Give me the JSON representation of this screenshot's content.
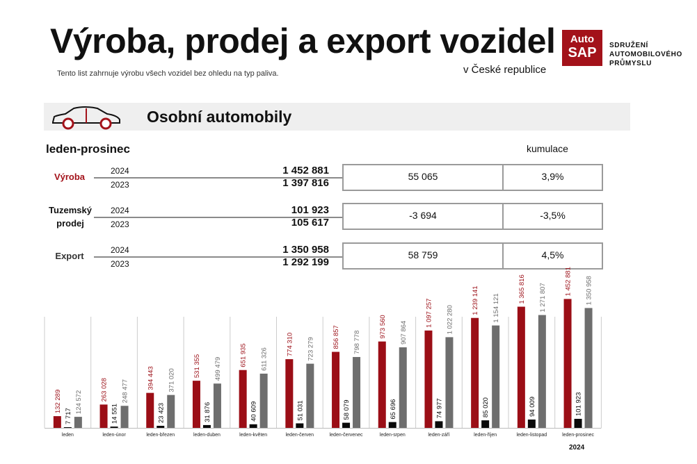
{
  "header": {
    "title": "Výroba, prodej a export vozidel",
    "note": "Tento list zahrnuje výrobu všech vozidel bez ohledu na typ paliva.",
    "region": "v České republice"
  },
  "logo": {
    "line1": "Auto",
    "line2": "SAP",
    "text1": "SDRUŽENÍ",
    "text2": "AUTOMOBILOVÉHO",
    "text3": "PRŮMYSLU"
  },
  "section": {
    "title": "Osobní automobily",
    "icon": "car-icon"
  },
  "period": "leden-prosinec",
  "cumulation_label": "kumulace",
  "metrics": [
    {
      "label": "Výroba",
      "label_color": "#a3121a",
      "year_a": "2024",
      "value_a": "1 452 881",
      "year_b": "2023",
      "value_b": "1 397 816",
      "diff": "55 065",
      "pct": "3,9%"
    },
    {
      "label": "Tuzemský prodej",
      "label_color": "#111111",
      "year_a": "2024",
      "value_a": "101 923",
      "year_b": "2023",
      "value_b": "105 617",
      "diff": "-3 694",
      "pct": "-3,5%"
    },
    {
      "label": "Export",
      "label_color": "#333333",
      "year_a": "2024",
      "value_a": "1 350 958",
      "year_b": "2023",
      "value_b": "1 292 199",
      "diff": "58 759",
      "pct": "4,5%"
    }
  ],
  "colors": {
    "production": "#9b0e16",
    "sales": "#0a0a0a",
    "export": "#6e6e6e"
  },
  "chart_data": {
    "type": "bar",
    "categories": [
      "leden",
      "leden-únor",
      "leden-březen",
      "leden-duben",
      "leden-květen",
      "leden-červen",
      "leden-červenec",
      "leden-srpen",
      "leden-září",
      "leden-říjen",
      "leden-listopad",
      "leden-prosinec"
    ],
    "series": [
      {
        "values": [
          132289,
          263028,
          394443,
          531355,
          651935,
          774310,
          856857,
          973560,
          1097257,
          1239141,
          1365816,
          1452881
        ],
        "labels": [
          "132 289",
          "263 028",
          "394 443",
          "531 355",
          "651 935",
          "774 310",
          "856 857",
          "973 560",
          "1 097 257",
          "1 239 141",
          "1 365 816",
          "1 452 881"
        ],
        "color": "#9b0e16",
        "label_color": "#9b0e16"
      },
      {
        "values": [
          7717,
          14551,
          23423,
          31876,
          40609,
          51031,
          58079,
          65696,
          74977,
          85020,
          94009,
          101923
        ],
        "labels": [
          "7 717",
          "14 551",
          "23 423",
          "31 876",
          "40 609",
          "51 031",
          "58 079",
          "65 696",
          "74 977",
          "85 020",
          "94 009",
          "101 923"
        ],
        "color": "#0a0a0a",
        "label_color": "#0a0a0a"
      },
      {
        "values": [
          124572,
          248477,
          371020,
          499479,
          611326,
          723279,
          798778,
          907864,
          1022280,
          1154121,
          1271807,
          1350958
        ],
        "labels": [
          "124 572",
          "248 477",
          "371 020",
          "499 479",
          "611 326",
          "723 279",
          "798 778",
          "907 864",
          "1 022 280",
          "1 154 121",
          "1 271 807",
          "1 350 958"
        ],
        "color": "#6e6e6e",
        "label_color": "#6e6e6e"
      }
    ],
    "year_label": "2024",
    "ylim": [
      0,
      1550000
    ],
    "grid": false,
    "legend": "none"
  }
}
